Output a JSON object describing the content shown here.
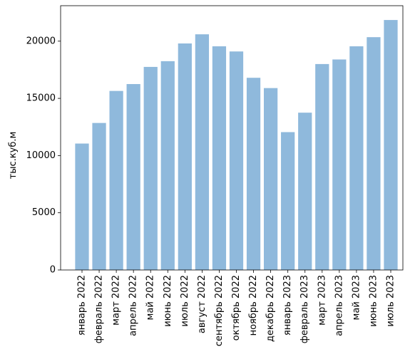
{
  "chart_data": {
    "type": "bar",
    "title": "",
    "xlabel": "",
    "ylabel": "тыс.куб.м",
    "ylim": [
      0,
      23100
    ],
    "yticks": [
      0,
      5000,
      10000,
      15000,
      20000
    ],
    "grid": false,
    "legend": "none",
    "bar_color": "#8fb9dc",
    "categories": [
      "январь 2022",
      "февраль 2022",
      "март 2022",
      "апрель 2022",
      "май 2022",
      "июнь 2022",
      "июль 2022",
      "август 2022",
      "сентябрь 2022",
      "октябрь 2022",
      "ноябрь 2022",
      "декабрь 2022",
      "январь 2023",
      "февраль 2023",
      "март 2023",
      "апрель 2023",
      "май 2023",
      "июнь 2023",
      "июль 2023"
    ],
    "values": [
      11050,
      12850,
      15650,
      16250,
      17750,
      18250,
      19800,
      20600,
      19550,
      19100,
      16800,
      15900,
      12050,
      13750,
      18000,
      18400,
      19550,
      20350,
      21850
    ]
  }
}
